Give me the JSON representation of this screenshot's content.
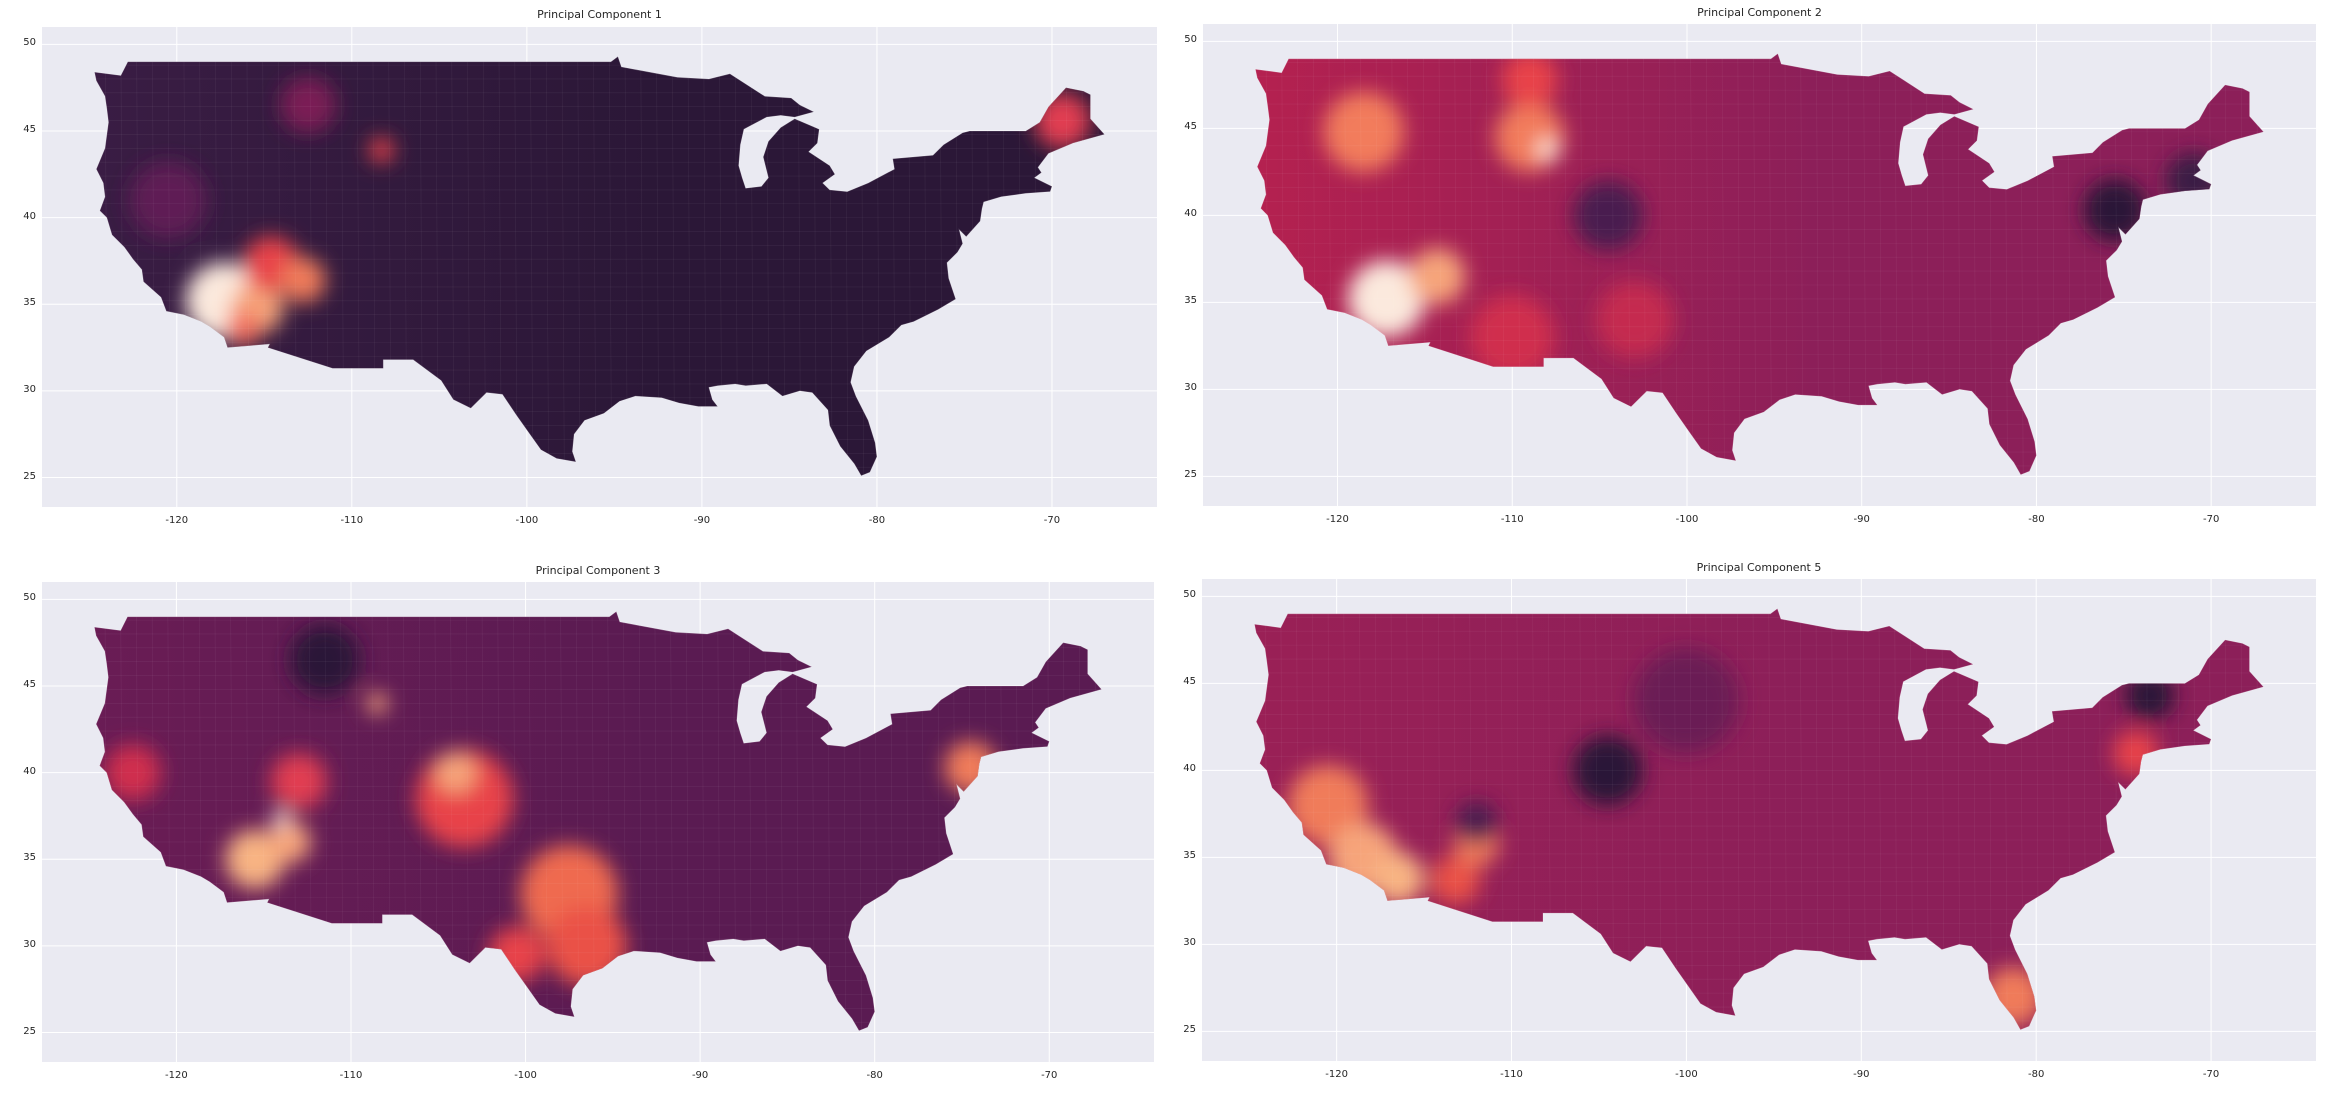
{
  "figure": {
    "panels": [
      {
        "title": "Principal Component 1",
        "x_ticks": [
          "-120",
          "-110",
          "-100",
          "-90",
          "-80",
          "-70"
        ],
        "y_ticks": [
          "50",
          "45",
          "40",
          "35",
          "30",
          "25"
        ],
        "base_color": "#2b1737",
        "west_color": "#3b1d45",
        "hotspots": [
          {
            "lon": -117.3,
            "lat": 35.2,
            "color": "#fbe9dd",
            "r": 2.2
          },
          {
            "lon": -115.4,
            "lat": 34.8,
            "color": "#f6a47a",
            "r": 1.5
          },
          {
            "lon": -114.6,
            "lat": 37.3,
            "color": "#e8424a",
            "r": 1.6
          },
          {
            "lon": -112.8,
            "lat": 36.4,
            "color": "#f07b5a",
            "r": 1.3
          },
          {
            "lon": -116.2,
            "lat": 33.6,
            "color": "#f2705e",
            "r": 1.0
          },
          {
            "lon": -108.3,
            "lat": 43.9,
            "color": "#e8424a",
            "r": 0.7
          },
          {
            "lon": -69.4,
            "lat": 45.6,
            "color": "#e13e51",
            "r": 1.6
          },
          {
            "lon": -112.5,
            "lat": 46.5,
            "color": "#7a1e55",
            "r": 1.6
          },
          {
            "lon": -120.5,
            "lat": 41.0,
            "color": "#5e1a54",
            "r": 2.2
          }
        ]
      },
      {
        "title": "Principal Component 2",
        "x_ticks": [
          "-120",
          "-110",
          "-100",
          "-90",
          "-80",
          "-70"
        ],
        "y_ticks": [
          "50",
          "45",
          "40",
          "35",
          "30",
          "25"
        ],
        "base_color": "#8c1f59",
        "west_color": "#b8214f",
        "hotspots": [
          {
            "lon": -117.2,
            "lat": 35.2,
            "color": "#fbe9dd",
            "r": 2.2
          },
          {
            "lon": -114.3,
            "lat": 36.5,
            "color": "#f6a47a",
            "r": 1.6
          },
          {
            "lon": -118.5,
            "lat": 44.8,
            "color": "#f27c5c",
            "r": 2.3
          },
          {
            "lon": -109.0,
            "lat": 44.5,
            "color": "#f27c5c",
            "r": 2.0
          },
          {
            "lon": -109.0,
            "lat": 47.8,
            "color": "#e8424a",
            "r": 1.6
          },
          {
            "lon": -108.0,
            "lat": 43.8,
            "color": "#fbe9dd",
            "r": 0.6
          },
          {
            "lon": -104.5,
            "lat": 40.0,
            "color": "#4a1a4f",
            "r": 2.0
          },
          {
            "lon": -75.5,
            "lat": 40.3,
            "color": "#2b1737",
            "r": 1.8
          },
          {
            "lon": -71.0,
            "lat": 42.0,
            "color": "#3b1d45",
            "r": 1.6
          },
          {
            "lon": -103.0,
            "lat": 34.0,
            "color": "#c52a4f",
            "r": 2.2
          },
          {
            "lon": -110.0,
            "lat": 33.0,
            "color": "#d02f4e",
            "r": 2.4
          }
        ]
      },
      {
        "title": "Principal Component 3",
        "x_ticks": [
          "-120",
          "-110",
          "-100",
          "-90",
          "-80",
          "-70"
        ],
        "y_ticks": [
          "50",
          "45",
          "40",
          "35",
          "30",
          "25"
        ],
        "base_color": "#5a1b52",
        "west_color": "#6b1c55",
        "hotspots": [
          {
            "lon": -97.5,
            "lat": 33.0,
            "color": "#ef6a4f",
            "r": 2.8
          },
          {
            "lon": -96.5,
            "lat": 30.0,
            "color": "#ea5147",
            "r": 2.3
          },
          {
            "lon": -103.5,
            "lat": 38.5,
            "color": "#e8424a",
            "r": 2.8
          },
          {
            "lon": -104.0,
            "lat": 40.0,
            "color": "#f6a47a",
            "r": 1.2
          },
          {
            "lon": -115.5,
            "lat": 35.0,
            "color": "#f8b483",
            "r": 1.7
          },
          {
            "lon": -113.5,
            "lat": 36.0,
            "color": "#f6a47a",
            "r": 1.2
          },
          {
            "lon": -114.0,
            "lat": 37.3,
            "color": "#fbe9dd",
            "r": 0.5
          },
          {
            "lon": -113.0,
            "lat": 39.5,
            "color": "#e13e51",
            "r": 1.6
          },
          {
            "lon": -122.5,
            "lat": 40.0,
            "color": "#d02f4e",
            "r": 1.6
          },
          {
            "lon": -74.5,
            "lat": 40.3,
            "color": "#f07b5a",
            "r": 1.5
          },
          {
            "lon": -111.5,
            "lat": 46.5,
            "color": "#2b1737",
            "r": 2.0
          },
          {
            "lon": -108.5,
            "lat": 44.0,
            "color": "#f6a47a",
            "r": 0.6
          },
          {
            "lon": -100.5,
            "lat": 29.5,
            "color": "#e8424a",
            "r": 1.6
          }
        ]
      },
      {
        "title": "Principal Component 5",
        "x_ticks": [
          "-120",
          "-110",
          "-100",
          "-90",
          "-80",
          "-70"
        ],
        "y_ticks": [
          "50",
          "45",
          "40",
          "35",
          "30",
          "25"
        ],
        "base_color": "#8c1f59",
        "west_color": "#9b2056",
        "hotspots": [
          {
            "lon": -120.5,
            "lat": 38.0,
            "color": "#f07b5a",
            "r": 2.3
          },
          {
            "lon": -118.5,
            "lat": 35.0,
            "color": "#f6a47a",
            "r": 2.0
          },
          {
            "lon": -116.5,
            "lat": 33.8,
            "color": "#f8b483",
            "r": 1.5
          },
          {
            "lon": -113.2,
            "lat": 33.7,
            "color": "#ea5147",
            "r": 1.4
          },
          {
            "lon": -112.0,
            "lat": 35.8,
            "color": "#f07b5a",
            "r": 1.3
          },
          {
            "lon": -81.3,
            "lat": 27.0,
            "color": "#f07b5a",
            "r": 1.7
          },
          {
            "lon": -104.5,
            "lat": 40.0,
            "color": "#2b1737",
            "r": 2.0
          },
          {
            "lon": -73.5,
            "lat": 44.3,
            "color": "#2b1737",
            "r": 1.4
          },
          {
            "lon": -74.3,
            "lat": 41.0,
            "color": "#e8424a",
            "r": 1.3
          },
          {
            "lon": -112.0,
            "lat": 37.0,
            "color": "#4a1a4f",
            "r": 1.2
          },
          {
            "lon": -100.0,
            "lat": 44.0,
            "color": "#6b1c55",
            "r": 3.0
          }
        ]
      }
    ]
  }
}
